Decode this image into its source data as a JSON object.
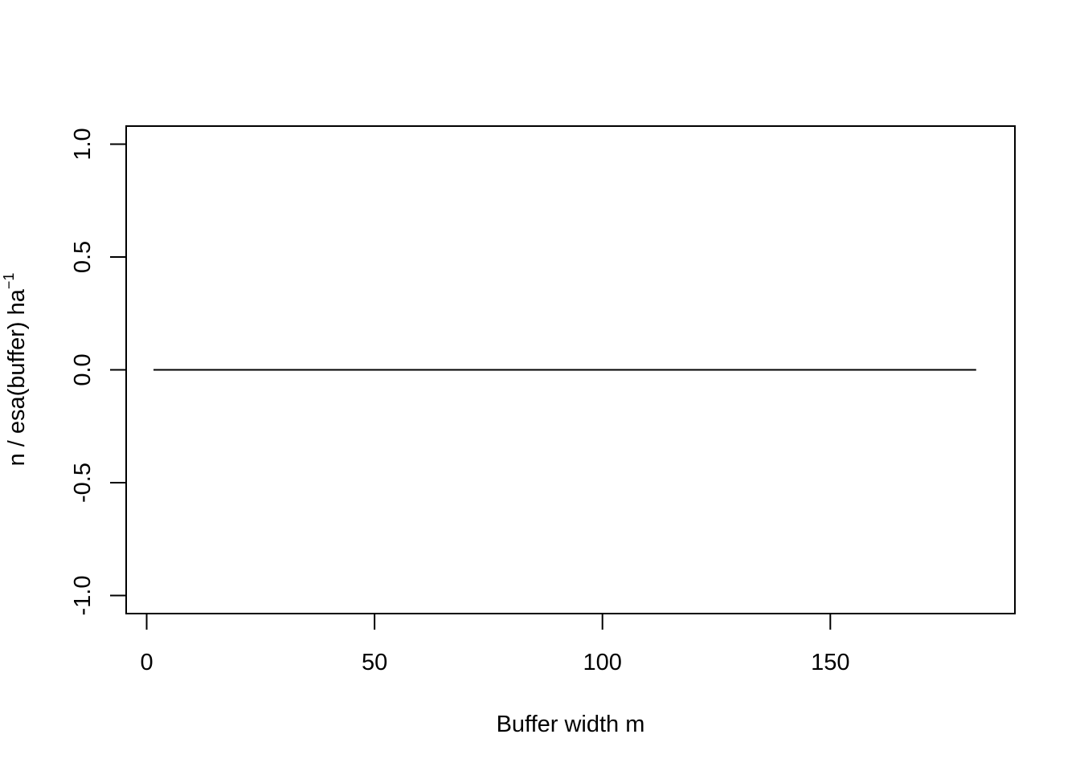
{
  "chart_data": {
    "type": "line",
    "title": "",
    "xlabel": "Buffer width  m",
    "ylabel": "n / esa(buffer)   ha",
    "ylabel_superscript": "−1",
    "xlim": [
      -4.5,
      190.5
    ],
    "ylim": [
      -1.08,
      1.08
    ],
    "x_ticks": [
      0,
      50,
      100,
      150
    ],
    "x_tick_labels": [
      "0",
      "50",
      "100",
      "150"
    ],
    "y_ticks": [
      -1.0,
      -0.5,
      0.0,
      0.5,
      1.0
    ],
    "y_tick_labels": [
      "-1.0",
      "-0.5",
      "0.0",
      "0.5",
      "1.0"
    ],
    "grid": false,
    "series": [
      {
        "x": [
          1.5,
          182
        ],
        "y": [
          0,
          0
        ],
        "color": "#000000"
      }
    ]
  }
}
